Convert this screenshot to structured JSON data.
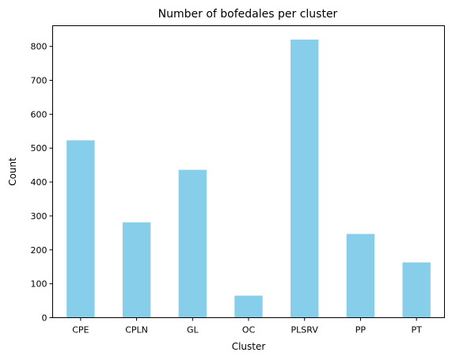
{
  "chart_data": {
    "type": "bar",
    "title": "Number of bofedales per cluster",
    "xlabel": "Cluster",
    "ylabel": "Count",
    "categories": [
      "CPE",
      "CPLN",
      "GL",
      "OC",
      "PLSRV",
      "PP",
      "PT"
    ],
    "values": [
      523,
      281,
      436,
      65,
      820,
      247,
      163
    ],
    "ylim": [
      0,
      861
    ],
    "yticks": [
      0,
      100,
      200,
      300,
      400,
      500,
      600,
      700,
      800
    ],
    "bar_color": "#87ceeb",
    "grid": false,
    "legend": "none"
  }
}
